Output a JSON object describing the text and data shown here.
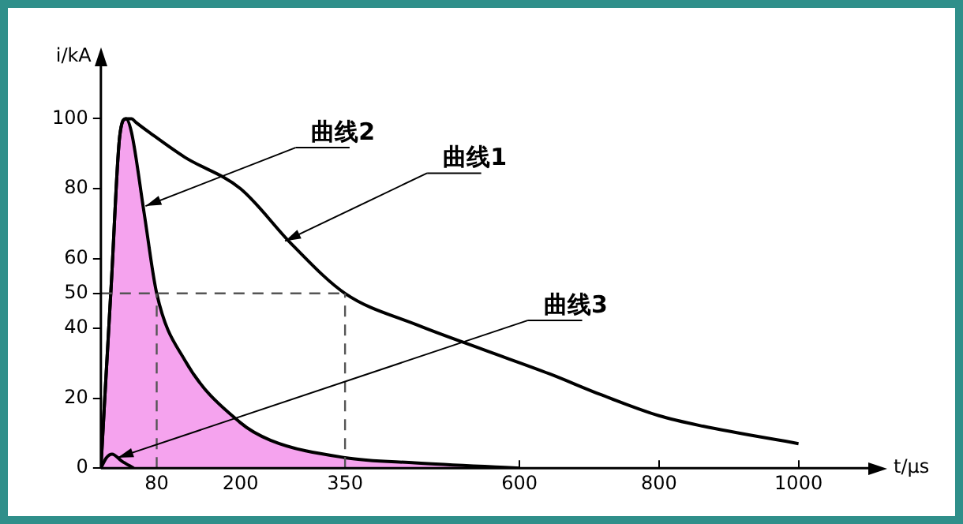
{
  "chart_data": {
    "type": "line",
    "xlabel": "t/μs",
    "ylabel": "i/kA",
    "xlim": [
      0,
      1100
    ],
    "ylim": [
      0,
      115
    ],
    "xticks": [
      80,
      200,
      350,
      600,
      800,
      1000
    ],
    "yticks": [
      0,
      20,
      40,
      50,
      60,
      80,
      100
    ],
    "series": [
      {
        "color": "#000000",
        "x": [
          0,
          5,
          15,
          27,
          36,
          44,
          50,
          70,
          120,
          200,
          274,
          350,
          453,
          547,
          643,
          717,
          800,
          863,
          1000
        ],
        "values": [
          0,
          18,
          53,
          95,
          100,
          100,
          99,
          96,
          89,
          80,
          64,
          50,
          41,
          34,
          27,
          21,
          15,
          12,
          7
        ]
      },
      {
        "type": "area",
        "color": "#f5a3ee",
        "x": [
          0,
          5,
          15,
          27,
          36,
          44,
          62,
          80,
          120,
          200,
          243,
          350,
          450,
          600
        ],
        "values": [
          0,
          18,
          53,
          95,
          100,
          96,
          73,
          50,
          31,
          13,
          8,
          3,
          1.5,
          0
        ]
      },
      {
        "color": "#000000",
        "x": [
          0,
          8,
          16,
          30,
          47
        ],
        "values": [
          0,
          3,
          4,
          2,
          0
        ]
      }
    ],
    "annotations": [
      {
        "text": "曲线2",
        "x": 64,
        "y": 75
      },
      {
        "text": "曲线1",
        "x": 264,
        "y": 65
      },
      {
        "text": "曲线3",
        "x": 24,
        "y": 3
      }
    ],
    "ref_lines": [
      {
        "axis": "y",
        "value": 50,
        "color": "#555555",
        "line_style": "dashed"
      },
      {
        "axis": "x",
        "value": 80,
        "color": "#555555",
        "line_style": "dashed"
      },
      {
        "axis": "x",
        "value": 350,
        "color": "#555555",
        "line_style": "dashed"
      }
    ],
    "legend": false,
    "grid": false,
    "marker": "none",
    "line_style": "solid"
  }
}
